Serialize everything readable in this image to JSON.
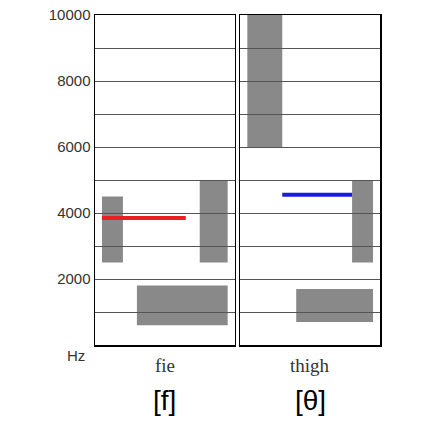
{
  "chart_data": {
    "type": "line",
    "y_unit": "Hz",
    "ylim": [
      0,
      10000
    ],
    "yticks": [
      2000,
      4000,
      6000,
      8000,
      10000
    ],
    "xlim": [
      0,
      1
    ],
    "grid": true,
    "tick_labels": "y",
    "panels": [
      {
        "label": "fie",
        "symbol": "[f]",
        "energy_regions": [
          {
            "x": [
              0.3,
              0.95
            ],
            "y": [
              600,
              1800
            ]
          },
          {
            "x": [
              0.05,
              0.2
            ],
            "y": [
              2500,
              4500
            ]
          },
          {
            "x": [
              0.75,
              0.95
            ],
            "y": [
              2500,
              5000
            ]
          }
        ],
        "series": [
          {
            "color": "#e8211f",
            "x": [
              0.05,
              0.65
            ],
            "values": [
              3850,
              3850
            ]
          }
        ]
      },
      {
        "label": "thigh",
        "symbol": "[θ]",
        "energy_regions": [
          {
            "x": [
              0.05,
              0.3
            ],
            "y": [
              6000,
              10000
            ]
          },
          {
            "x": [
              0.4,
              0.95
            ],
            "y": [
              700,
              1700
            ]
          },
          {
            "x": [
              0.8,
              0.95
            ],
            "y": [
              2500,
              5000
            ]
          }
        ],
        "series": [
          {
            "color": "#1a1ae6",
            "x": [
              0.3,
              0.8
            ],
            "values": [
              4550,
              4550
            ]
          }
        ]
      }
    ]
  }
}
